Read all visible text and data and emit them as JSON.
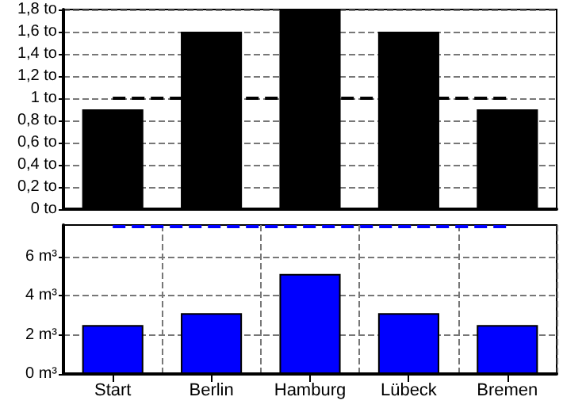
{
  "chart_data": [
    {
      "type": "bar",
      "categories": [
        null,
        null,
        null,
        null,
        null
      ],
      "values": [
        0.9,
        1.6,
        1.8,
        1.6,
        0.9
      ],
      "color": "#000000",
      "ylim": [
        0,
        1.8
      ],
      "yticks": [
        {
          "value": 0,
          "label": "0 to"
        },
        {
          "value": 0.2,
          "label": "0,2 to"
        },
        {
          "value": 0.4,
          "label": "0,4 to"
        },
        {
          "value": 0.6,
          "label": "0,6 to"
        },
        {
          "value": 0.8,
          "label": "0,8 to"
        },
        {
          "value": 1,
          "label": "1 to"
        },
        {
          "value": 1.2,
          "label": "1,2 to"
        },
        {
          "value": 1.4,
          "label": "1,4 to"
        },
        {
          "value": 1.6,
          "label": "1,6 to"
        },
        {
          "value": 1.8,
          "label": "1,8 to"
        }
      ],
      "grid": "y",
      "tick_labels": "y",
      "ref_lines": [
        {
          "axis": "y",
          "value": 1,
          "color": "#000000",
          "line_style": "dashed"
        }
      ]
    },
    {
      "type": "bar",
      "categories": [
        "Start",
        "Berlin",
        "Hamburg",
        "Lübeck",
        "Bremen"
      ],
      "values": [
        2.5,
        3.1,
        5.1,
        3.1,
        2.5
      ],
      "color": "#0000ff",
      "ylim": [
        0,
        7.6
      ],
      "yticks": [
        {
          "value": 0,
          "label": "0 m³"
        },
        {
          "value": 2,
          "label": "2 m³"
        },
        {
          "value": 4,
          "label": "4 m³"
        },
        {
          "value": 6,
          "label": "6 m³"
        }
      ],
      "grid": true,
      "ref_lines": [
        {
          "axis": "y",
          "value": 7.5,
          "color": "#0000ff",
          "line_style": "dashed"
        }
      ]
    }
  ]
}
